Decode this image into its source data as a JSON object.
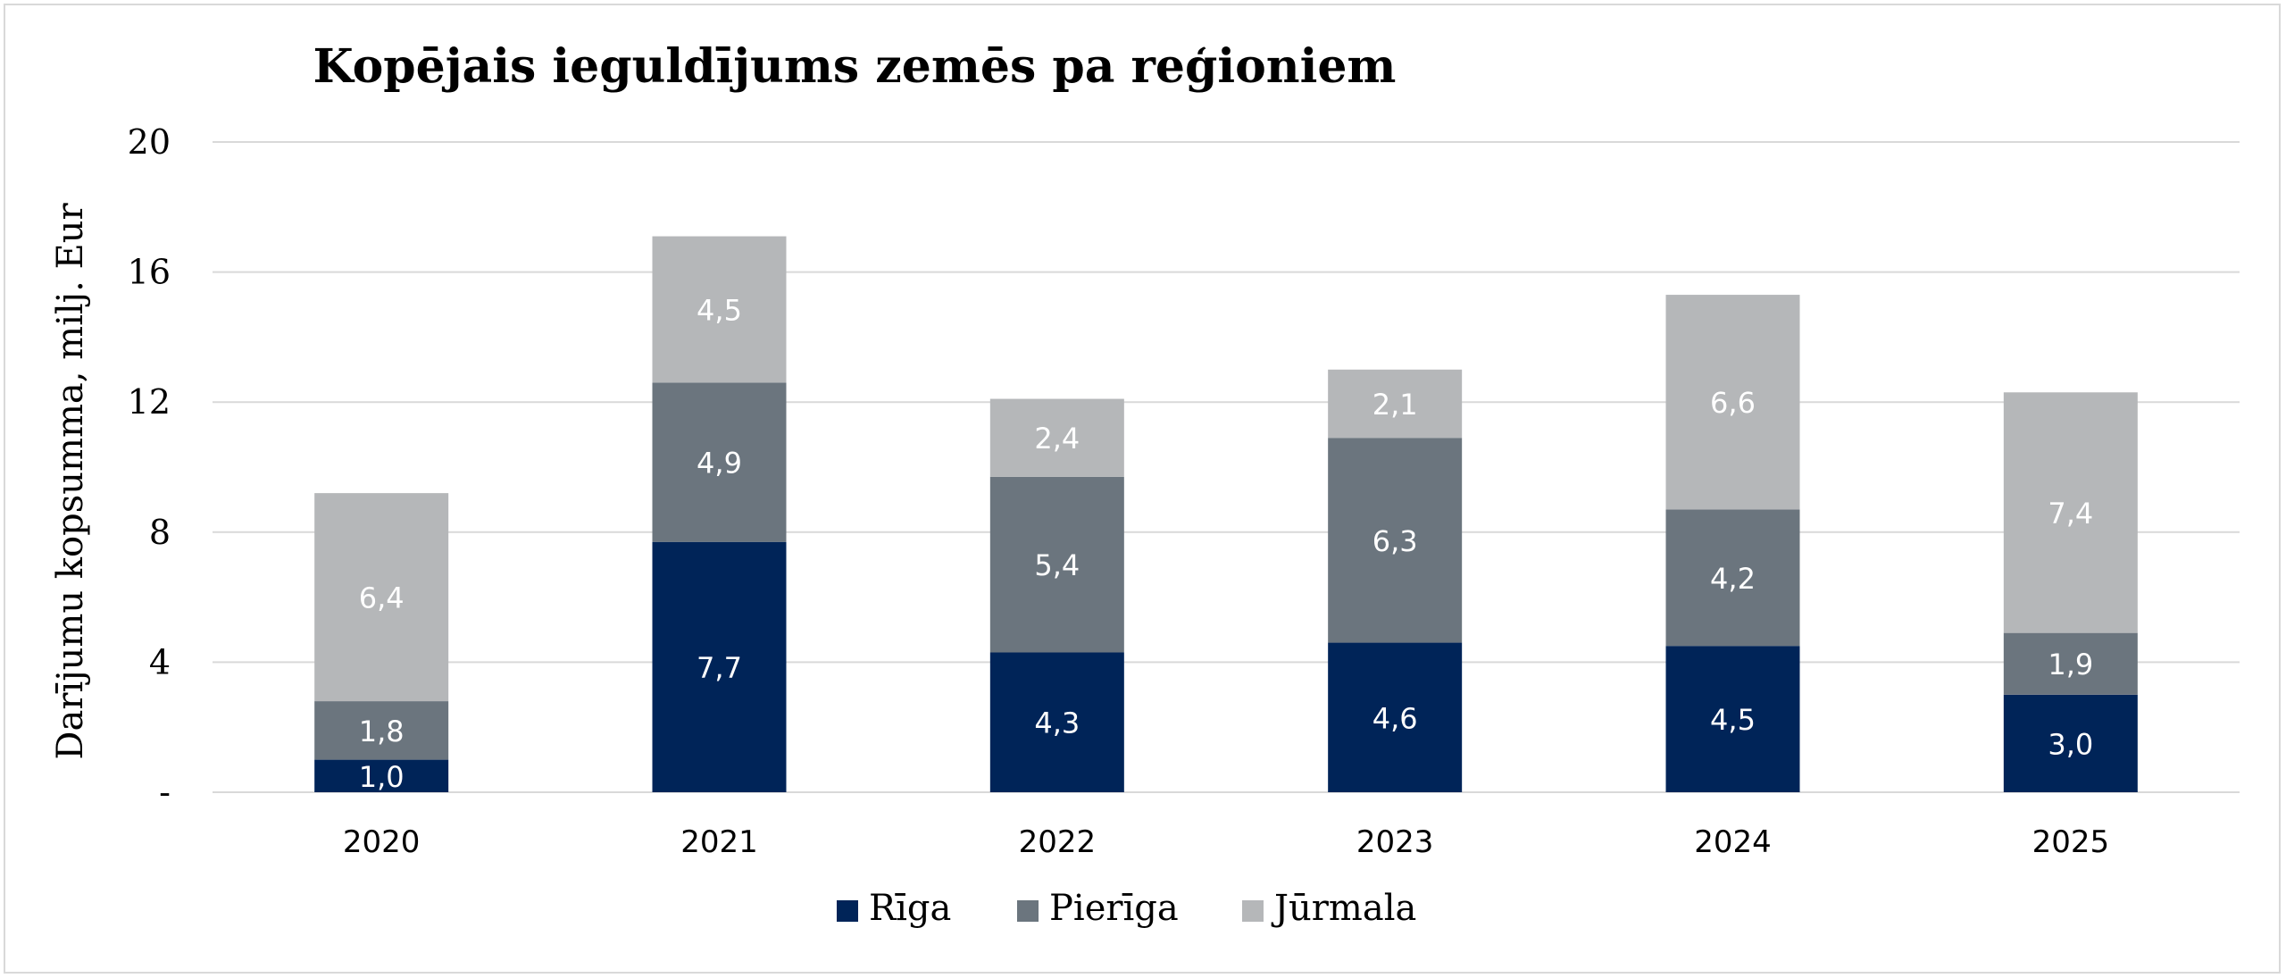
{
  "chart_data": {
    "type": "bar",
    "stacked": true,
    "title": "Kopējais ieguldījums zemēs pa reģioniem",
    "xlabel": "",
    "ylabel": "Darījumu kopsumma, milj. Eur",
    "ylim": [
      0,
      20
    ],
    "yticks": [
      0,
      4,
      8,
      12,
      16,
      20
    ],
    "ytick_labels": [
      "-",
      "4",
      "8",
      "12",
      "16",
      "20"
    ],
    "grid": true,
    "legend_position": "bottom",
    "categories": [
      "2020",
      "2021",
      "2022",
      "2023",
      "2024",
      "2025"
    ],
    "series": [
      {
        "name": "Rīga",
        "color": "#002458",
        "values": [
          1.0,
          7.7,
          4.3,
          4.6,
          4.5,
          3.0
        ],
        "labels": [
          "1,0",
          "7,7",
          "4,3",
          "4,6",
          "4,5",
          "3,0"
        ]
      },
      {
        "name": "Pierīga",
        "color": "#6b757e",
        "values": [
          1.8,
          4.9,
          5.4,
          6.3,
          4.2,
          1.9
        ],
        "labels": [
          "1,8",
          "4,9",
          "5,4",
          "6,3",
          "4,2",
          "1,9"
        ]
      },
      {
        "name": "Jūrmala",
        "color": "#b5b7b9",
        "values": [
          6.4,
          4.5,
          2.4,
          2.1,
          6.6,
          7.4
        ],
        "labels": [
          "6,4",
          "4,5",
          "2,4",
          "2,1",
          "6,6",
          "7,4"
        ]
      }
    ]
  }
}
